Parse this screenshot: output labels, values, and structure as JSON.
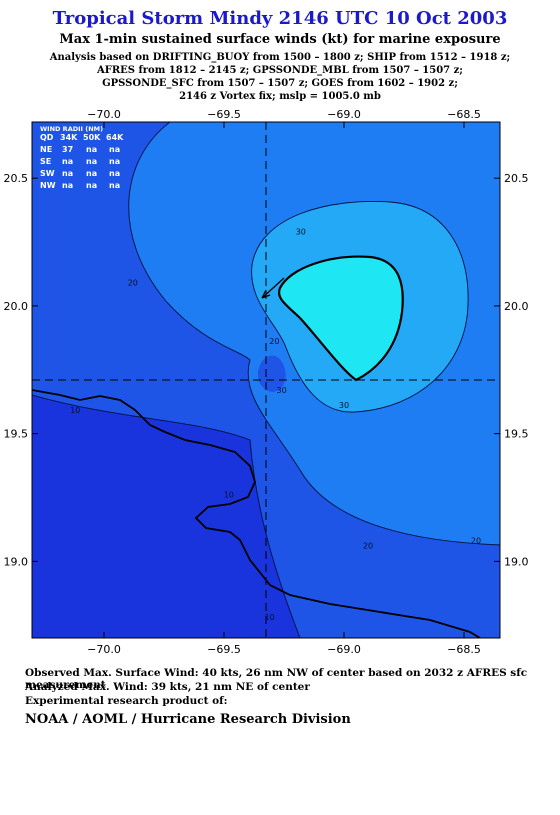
{
  "header": {
    "title": "Tropical Storm Mindy 2146 UTC 10 Oct 2003",
    "subtitle": "Max 1-min sustained surface winds (kt) for marine exposure",
    "analysis_lines": [
      "Analysis based on  DRIFTING_BUOY from 1500 – 1800 z;  SHIP from 1512 – 1918 z;",
      "AFRES from 1812 – 2145 z;  GPSSONDE_MBL from 1507 – 1507 z;",
      "GPSSONDE_SFC from 1507 – 1507 z;  GOES from 1602 – 1902 z;",
      "2146 z Vortex fix; mslp = 1005.0 mb"
    ]
  },
  "footer": {
    "observed": "Observed Max. Surface Wind: 40 kts, 26 nm NW of center based on 2032 z AFRES sfc measurement",
    "analyzed": "Analyzed Max. Wind: 39 kts, 21 nm NE of center",
    "experimental": "Experimental research product of:",
    "org": "NOAA / AOML / Hurricane Research Division"
  },
  "wind_radii": {
    "title": "WIND RADII (NM)",
    "columns": [
      "QD",
      "34K",
      "50K",
      "64K"
    ],
    "rows": [
      [
        "NE",
        "37",
        "na",
        "na"
      ],
      [
        "SE",
        "na",
        "na",
        "na"
      ],
      [
        "SW",
        "na",
        "na",
        "na"
      ],
      [
        "NW",
        "na",
        "na",
        "na"
      ]
    ]
  },
  "chart_data": {
    "type": "contour",
    "x_ticks": [
      -70.0,
      -69.5,
      -69.0,
      -68.5
    ],
    "x_tick_labels": [
      "−70.0",
      "−69.5",
      "−69.0",
      "−68.5"
    ],
    "y_ticks": [
      19.0,
      19.5,
      20.0,
      20.5
    ],
    "y_tick_labels": [
      "19.0",
      "19.5",
      "20.0",
      "20.5"
    ],
    "xlim": [
      -70.3,
      -68.35
    ],
    "ylim": [
      18.7,
      20.72
    ],
    "center": {
      "lon": -69.33,
      "lat": 19.7
    },
    "contour_levels_kt": [
      10,
      20,
      30,
      39
    ],
    "contour_labels": [
      {
        "text": "10",
        "lon": -69.48,
        "lat": 19.25
      },
      {
        "text": "10",
        "lon": -70.12,
        "lat": 19.58
      },
      {
        "text": "10",
        "lon": -69.31,
        "lat": 18.77
      },
      {
        "text": "20",
        "lon": -69.29,
        "lat": 19.85
      },
      {
        "text": "20",
        "lon": -69.88,
        "lat": 20.08
      },
      {
        "text": "20",
        "lon": -68.9,
        "lat": 19.05
      },
      {
        "text": "20",
        "lon": -68.45,
        "lat": 19.07
      },
      {
        "text": "30",
        "lon": -69.26,
        "lat": 19.66
      },
      {
        "text": "30",
        "lon": -69.18,
        "lat": 20.28
      },
      {
        "text": "30",
        "lon": -69.0,
        "lat": 19.6
      }
    ],
    "colors": {
      "band_10_20": "#1f55e6",
      "band_20_30": "#1f7df4",
      "band_30_39": "#23a9f6",
      "band_39_plus": "#1ee6f2",
      "band_below_10": "#1934dc"
    }
  }
}
